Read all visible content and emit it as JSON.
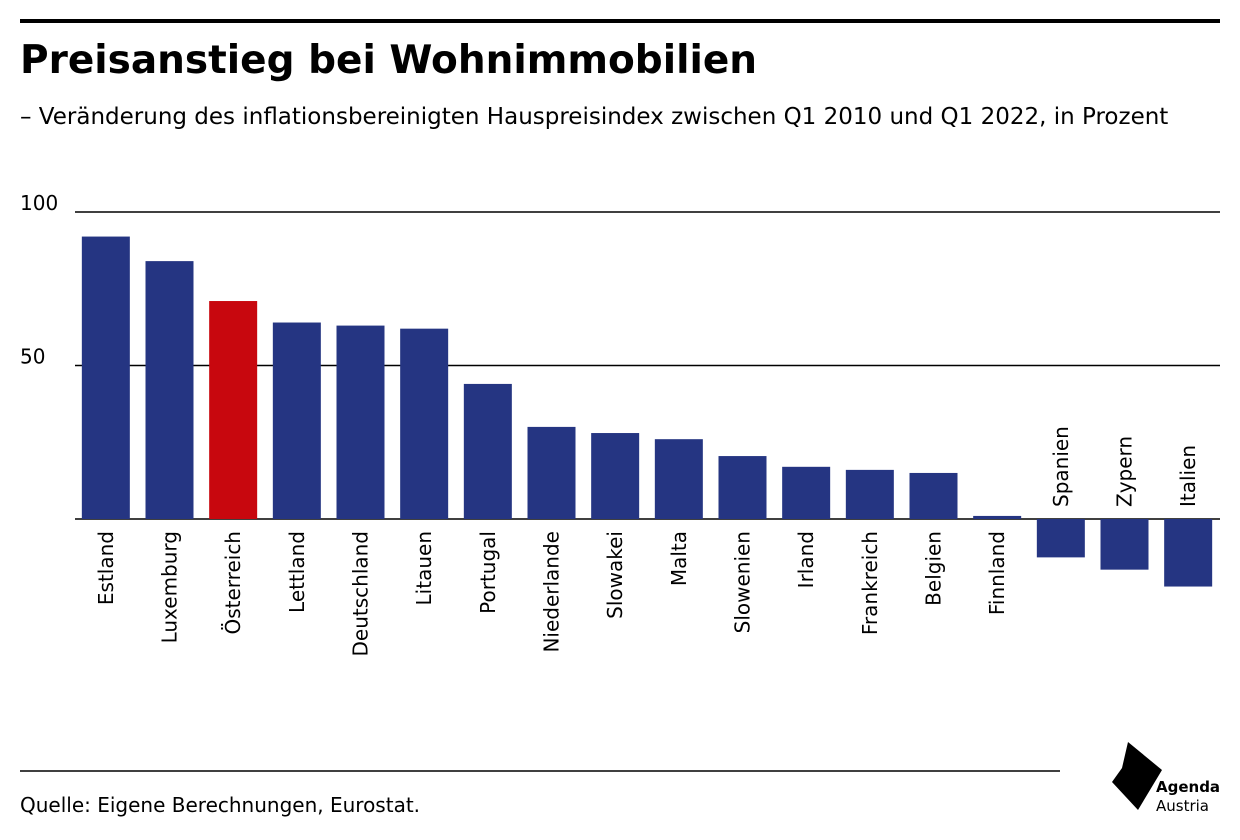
{
  "chart_data": {
    "type": "bar",
    "title": "Preisanstieg bei Wohnimmobilien",
    "subtitle": "– Veränderung des inflationsbereinigten Hauspreisindex zwischen Q1 2010 und Q1 2022, in Prozent",
    "categories": [
      "Estland",
      "Luxemburg",
      "Österreich",
      "Lettland",
      "Deutschland",
      "Litauen",
      "Portugal",
      "Niederlande",
      "Slowakei",
      "Malta",
      "Slowenien",
      "Irland",
      "Frankreich",
      "Belgien",
      "Finnland",
      "Spanien",
      "Zypern",
      "Italien"
    ],
    "values": [
      92,
      84,
      71,
      64,
      63,
      62,
      44,
      30,
      28,
      26,
      20.5,
      17,
      16,
      15,
      1,
      -12.5,
      -16.5,
      -22
    ],
    "colors": [
      "#253582",
      "#253582",
      "#c8070e",
      "#253582",
      "#253582",
      "#253582",
      "#253582",
      "#253582",
      "#253582",
      "#253582",
      "#253582",
      "#253582",
      "#253582",
      "#253582",
      "#253582",
      "#253582",
      "#253582",
      "#253582"
    ],
    "ylim": [
      -25,
      100
    ],
    "yticks": [
      50,
      100
    ],
    "grid": true,
    "source": "Quelle: Eigene Berechnungen, Eurostat."
  },
  "logo": {
    "line1": "Agenda",
    "line2": "Austria"
  }
}
